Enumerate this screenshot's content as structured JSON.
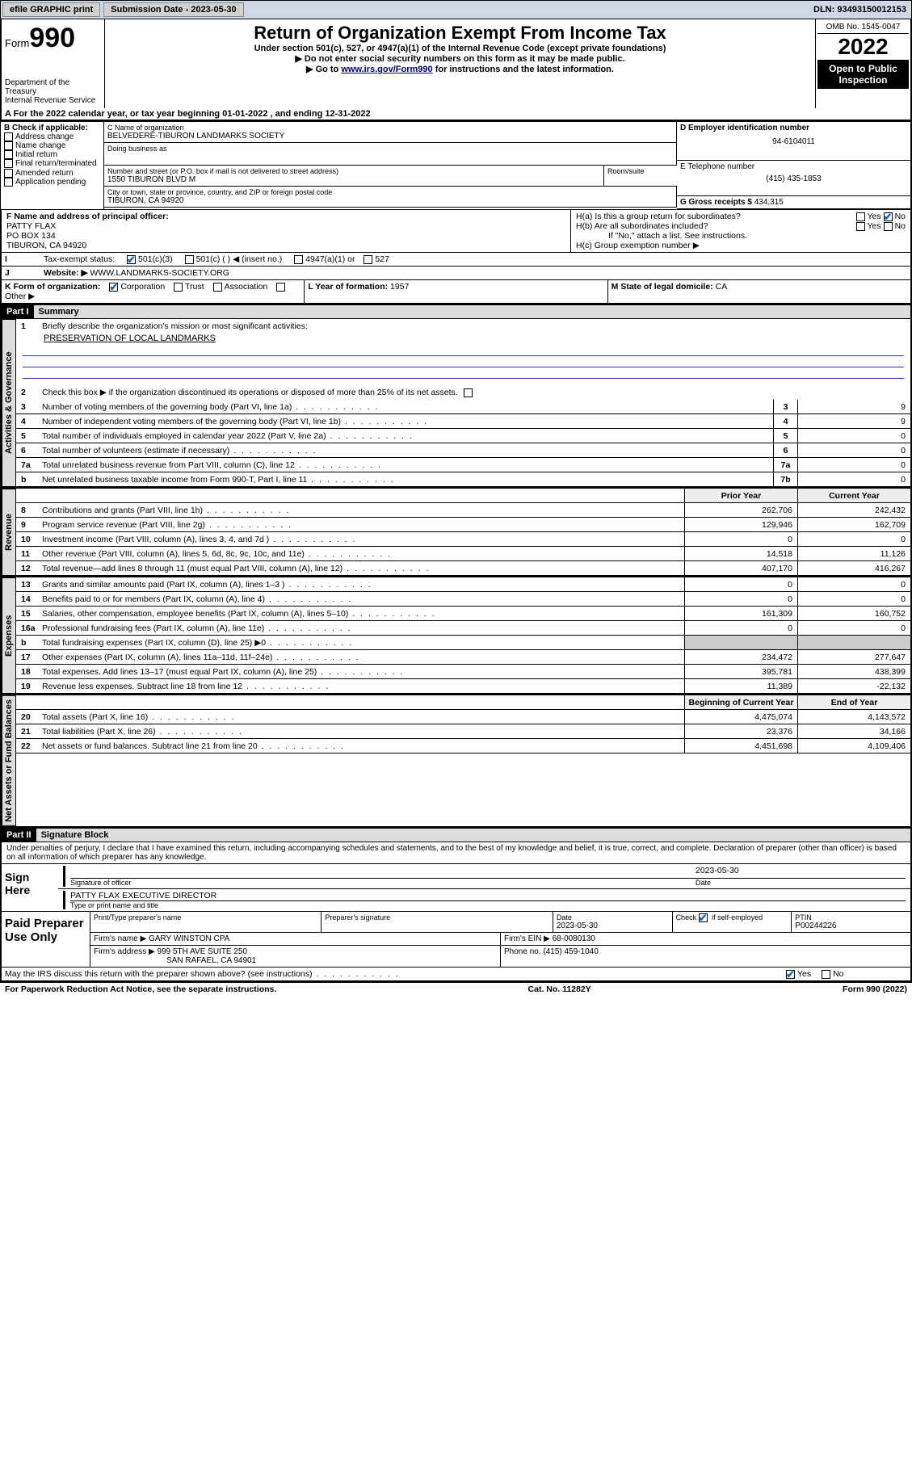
{
  "topbar": {
    "efile": "efile GRAPHIC print",
    "subdate_lbl": "Submission Date - ",
    "subdate": "2023-05-30",
    "dln_lbl": "DLN: ",
    "dln": "93493150012153"
  },
  "header": {
    "form_word": "Form",
    "form_num": "990",
    "dept": "Department of the Treasury\nInternal Revenue Service",
    "title": "Return of Organization Exempt From Income Tax",
    "sub": "Under section 501(c), 527, or 4947(a)(1) of the Internal Revenue Code (except private foundations)",
    "note1": "▶ Do not enter social security numbers on this form as it may be made public.",
    "note2_a": "▶ Go to ",
    "note2_link": "www.irs.gov/Form990",
    "note2_b": " for instructions and the latest information.",
    "omb": "OMB No. 1545-0047",
    "year": "2022",
    "open": "Open to Public Inspection"
  },
  "lineA": "For the 2022 calendar year, or tax year beginning 01-01-2022    , and ending 12-31-2022",
  "boxB": {
    "title": "B Check if applicable:",
    "opts": [
      "Address change",
      "Name change",
      "Initial return",
      "Final return/terminated",
      "Amended return",
      "Application pending"
    ]
  },
  "boxC": {
    "name_lbl": "C Name of organization",
    "name": "BELVEDERE-TIBURON LANDMARKS SOCIETY",
    "dba_lbl": "Doing business as",
    "dba": "",
    "addr_lbl": "Number and street (or P.O. box if mail is not delivered to street address)",
    "room_lbl": "Room/suite",
    "addr": "1550 TIBURON BLVD M",
    "city_lbl": "City or town, state or province, country, and ZIP or foreign postal code",
    "city": "TIBURON, CA  94920"
  },
  "boxD": {
    "lbl": "D Employer identification number",
    "val": "94-6104011"
  },
  "boxE": {
    "lbl": "E Telephone number",
    "val": "(415) 435-1853"
  },
  "boxG": {
    "lbl": "G Gross receipts $ ",
    "val": "434,315"
  },
  "boxF": {
    "lbl": "F  Name and address of principal officer:",
    "name": "PATTY FLAX",
    "addr1": "PO BOX 134",
    "addr2": "TIBURON, CA  94920"
  },
  "boxH": {
    "a": "H(a)  Is this a group return for subordinates?",
    "b": "H(b)  Are all subordinates included?",
    "b_note": "If \"No,\" attach a list. See instructions.",
    "c": "H(c)  Group exemption number ▶",
    "yes": "Yes",
    "no": "No"
  },
  "lineI": {
    "lbl": "Tax-exempt status:",
    "opts": [
      "501(c)(3)",
      "501(c) (  ) ◀ (insert no.)",
      "4947(a)(1) or",
      "527"
    ]
  },
  "lineJ": {
    "lbl": "Website: ▶",
    "val": "WWW.LANDMARKS-SOCIETY.ORG"
  },
  "lineK": {
    "lbl": "K Form of organization:",
    "opts": [
      "Corporation",
      "Trust",
      "Association",
      "Other ▶"
    ]
  },
  "lineL": {
    "lbl": "L Year of formation: ",
    "val": "1957"
  },
  "lineM": {
    "lbl": "M State of legal domicile: ",
    "val": "CA"
  },
  "part1": {
    "hdr": "Part I",
    "title": "Summary"
  },
  "summary": {
    "q1_lbl": "Briefly describe the organization's mission or most significant activities:",
    "q1_val": "PRESERVATION OF LOCAL LANDMARKS",
    "q2": "Check this box ▶       if the organization discontinued its operations or disposed of more than 25% of its net assets.",
    "col_prior": "Prior Year",
    "col_curr": "Current Year",
    "col_boy": "Beginning of Current Year",
    "col_eoy": "End of Year",
    "rows_gov": [
      {
        "n": "3",
        "d": "Number of voting members of the governing body (Part VI, line 1a)",
        "box": "3",
        "v": "9"
      },
      {
        "n": "4",
        "d": "Number of independent voting members of the governing body (Part VI, line 1b)",
        "box": "4",
        "v": "9"
      },
      {
        "n": "5",
        "d": "Total number of individuals employed in calendar year 2022 (Part V, line 2a)",
        "box": "5",
        "v": "0"
      },
      {
        "n": "6",
        "d": "Total number of volunteers (estimate if necessary)",
        "box": "6",
        "v": "0"
      },
      {
        "n": "7a",
        "d": "Total unrelated business revenue from Part VIII, column (C), line 12",
        "box": "7a",
        "v": "0"
      },
      {
        "n": "b",
        "d": "Net unrelated business taxable income from Form 990-T, Part I, line 11",
        "box": "7b",
        "v": "0"
      }
    ],
    "rows_rev": [
      {
        "n": "8",
        "d": "Contributions and grants (Part VIII, line 1h)",
        "p": "262,706",
        "c": "242,432"
      },
      {
        "n": "9",
        "d": "Program service revenue (Part VIII, line 2g)",
        "p": "129,946",
        "c": "162,709"
      },
      {
        "n": "10",
        "d": "Investment income (Part VIII, column (A), lines 3, 4, and 7d )",
        "p": "0",
        "c": "0"
      },
      {
        "n": "11",
        "d": "Other revenue (Part VIII, column (A), lines 5, 6d, 8c, 9c, 10c, and 11e)",
        "p": "14,518",
        "c": "11,126"
      },
      {
        "n": "12",
        "d": "Total revenue—add lines 8 through 11 (must equal Part VIII, column (A), line 12)",
        "p": "407,170",
        "c": "416,267"
      }
    ],
    "rows_exp": [
      {
        "n": "13",
        "d": "Grants and similar amounts paid (Part IX, column (A), lines 1–3 )",
        "p": "0",
        "c": "0"
      },
      {
        "n": "14",
        "d": "Benefits paid to or for members (Part IX, column (A), line 4)",
        "p": "0",
        "c": "0"
      },
      {
        "n": "15",
        "d": "Salaries, other compensation, employee benefits (Part IX, column (A), lines 5–10)",
        "p": "161,309",
        "c": "160,752"
      },
      {
        "n": "16a",
        "d": "Professional fundraising fees (Part IX, column (A), line 11e)",
        "p": "0",
        "c": "0"
      },
      {
        "n": "b",
        "d": "Total fundraising expenses (Part IX, column (D), line 25) ▶0",
        "p": "",
        "c": ""
      },
      {
        "n": "17",
        "d": "Other expenses (Part IX, column (A), lines 11a–11d, 11f–24e)",
        "p": "234,472",
        "c": "277,647"
      },
      {
        "n": "18",
        "d": "Total expenses. Add lines 13–17 (must equal Part IX, column (A), line 25)",
        "p": "395,781",
        "c": "438,399"
      },
      {
        "n": "19",
        "d": "Revenue less expenses. Subtract line 18 from line 12",
        "p": "11,389",
        "c": "-22,132"
      }
    ],
    "rows_net": [
      {
        "n": "20",
        "d": "Total assets (Part X, line 16)",
        "p": "4,475,074",
        "c": "4,143,572"
      },
      {
        "n": "21",
        "d": "Total liabilities (Part X, line 26)",
        "p": "23,376",
        "c": "34,166"
      },
      {
        "n": "22",
        "d": "Net assets or fund balances. Subtract line 21 from line 20",
        "p": "4,451,698",
        "c": "4,109,406"
      }
    ],
    "tabs": [
      "Activities & Governance",
      "Revenue",
      "Expenses",
      "Net Assets or Fund Balances"
    ]
  },
  "part2": {
    "hdr": "Part II",
    "title": "Signature Block"
  },
  "sig": {
    "decl": "Under penalties of perjury, I declare that I have examined this return, including accompanying schedules and statements, and to the best of my knowledge and belief, it is true, correct, and complete. Declaration of preparer (other than officer) is based on all information of which preparer has any knowledge.",
    "sign_here": "Sign Here",
    "sig_officer": "Signature of officer",
    "date_lbl": "Date",
    "date": "2023-05-30",
    "name_title": "PATTY FLAX  EXECUTIVE DIRECTOR",
    "type_name": "Type or print name and title"
  },
  "prep": {
    "title": "Paid Preparer Use Only",
    "h1": "Print/Type preparer's name",
    "h2": "Preparer's signature",
    "h3": "Date",
    "h3v": "2023-05-30",
    "h4": "Check        if self-employed",
    "h5": "PTIN",
    "h5v": "P00244226",
    "firm_name_lbl": "Firm's name    ▶",
    "firm_name": "GARY WINSTON CPA",
    "firm_ein_lbl": "Firm's EIN ▶",
    "firm_ein": "68-0080130",
    "firm_addr_lbl": "Firm's address ▶",
    "firm_addr1": "999 5TH AVE SUITE 250",
    "firm_addr2": "SAN RAFAEL, CA  94901",
    "phone_lbl": "Phone no. ",
    "phone": "(415) 459-1040"
  },
  "discuss": {
    "q": "May the IRS discuss this return with the preparer shown above? (see instructions)",
    "yes": "Yes",
    "no": "No"
  },
  "footer": {
    "left": "For Paperwork Reduction Act Notice, see the separate instructions.",
    "mid": "Cat. No. 11282Y",
    "right": "Form 990 (2022)"
  },
  "colors": {
    "mission_line": "#2040a0",
    "check": "#1565c0",
    "topbar_bg": "#cdd9e5"
  }
}
